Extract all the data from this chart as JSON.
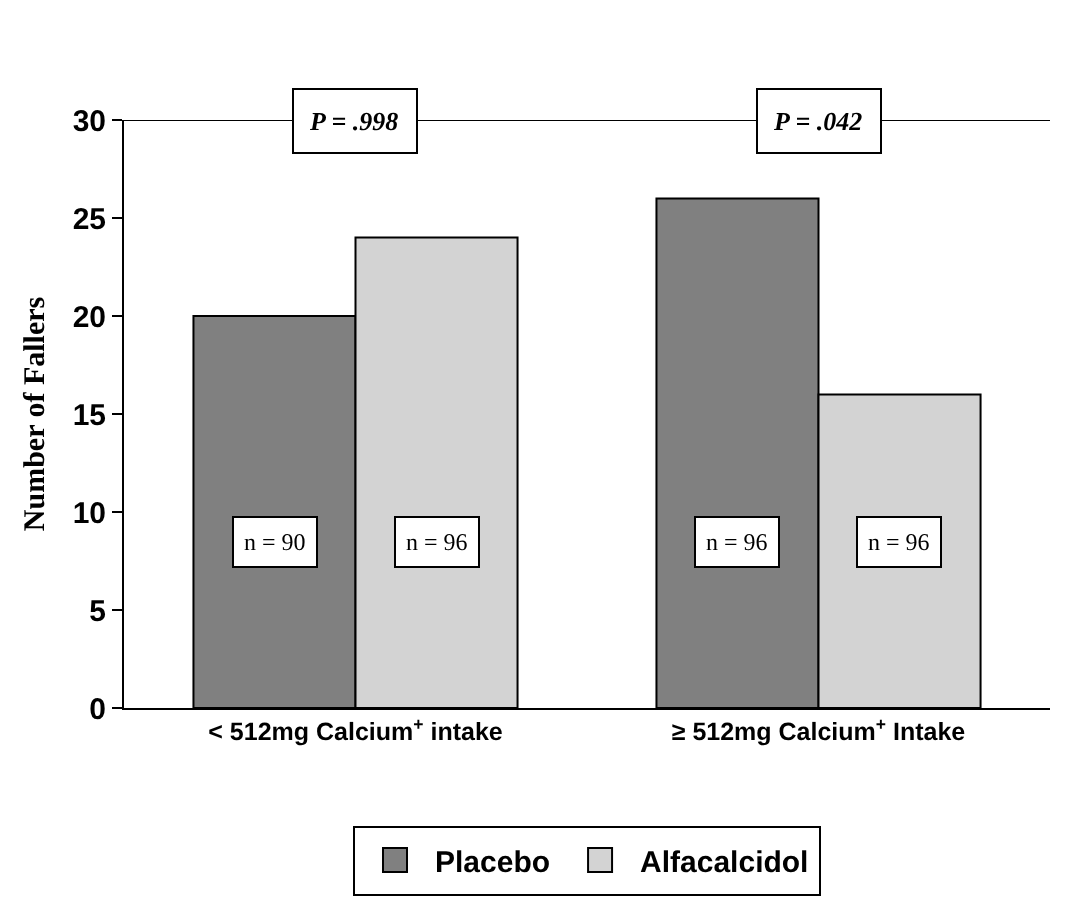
{
  "chart_data": {
    "type": "bar",
    "ylabel": "Number of Fallers",
    "categories": [
      "< 512mg Calcium$^{+}$ intake",
      "≥ 512mg Calcium$^{+}$ Intake"
    ],
    "series": [
      {
        "name": "Placebo",
        "color": "#808080",
        "values": [
          20,
          26
        ]
      },
      {
        "name": "Alfacalcidol",
        "color": "#d3d3d3",
        "values": [
          24,
          16
        ]
      }
    ],
    "ylim": [
      0,
      30
    ],
    "yticks": [
      0,
      5,
      10,
      15,
      20,
      25,
      30
    ],
    "grid": false,
    "legend": "bottom",
    "annotations": [
      "P = .998",
      "P = .042",
      {
        "text": "n = 90",
        "x": "< 512mg Calcium$^{+}$ intake",
        "y": 8.5
      },
      {
        "text": "n = 96",
        "x": "< 512mg Calcium$^{+}$ intake",
        "y": 8.5
      },
      {
        "text": "n = 96",
        "x": "≥ 512mg Calcium$^{+}$ Intake",
        "y": 8.5
      },
      {
        "text": "n = 96",
        "x": "≥ 512mg Calcium$^{+}$ Intake",
        "y": 8.5
      }
    ]
  }
}
